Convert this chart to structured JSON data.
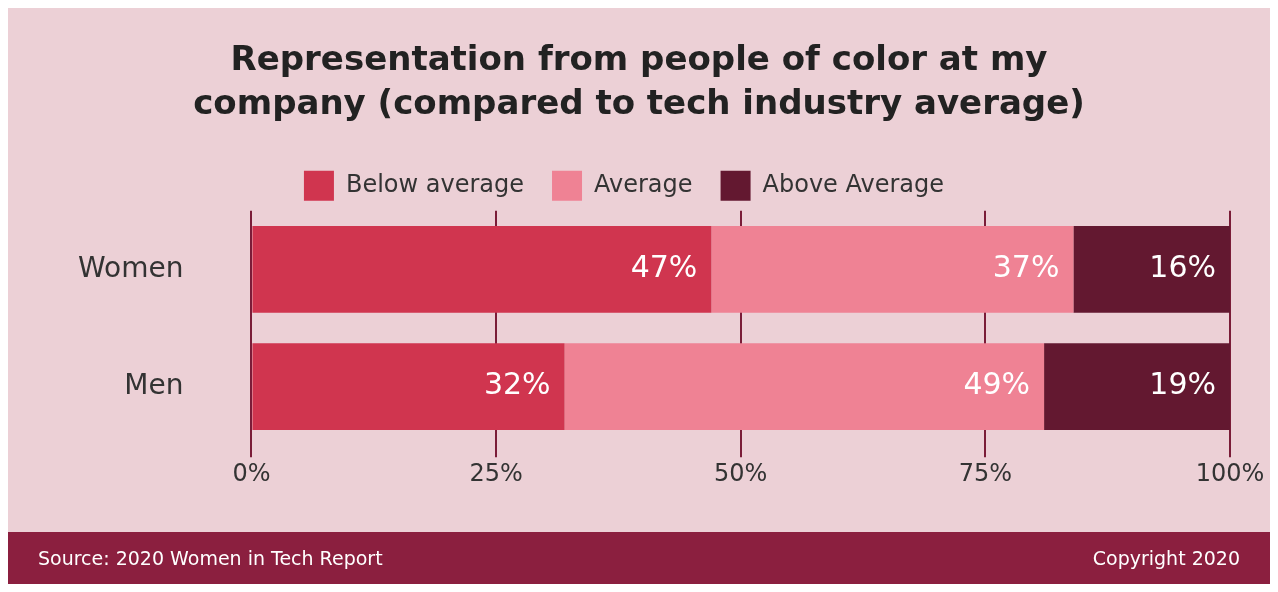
{
  "chart_data": {
    "type": "bar",
    "orientation": "horizontal",
    "stacked": true,
    "title": "Representation from people of color at my company (compared to tech industry average)",
    "categories": [
      "Women",
      "Men"
    ],
    "series": [
      {
        "name": "Below average",
        "color": "#d0354f",
        "values": [
          47,
          32
        ],
        "value_labels": [
          "47%",
          "32%"
        ]
      },
      {
        "name": "Average",
        "color": "#ef8294",
        "values": [
          37,
          49
        ],
        "value_labels": [
          "37%",
          "49%"
        ]
      },
      {
        "name": "Above Average",
        "color": "#631830",
        "values": [
          16,
          19
        ],
        "value_labels": [
          "16%",
          "19%"
        ]
      }
    ],
    "xlim": [
      0,
      100
    ],
    "xticks": [
      {
        "value": 0,
        "label": "0%"
      },
      {
        "value": 25,
        "label": "25%"
      },
      {
        "value": 50,
        "label": "50%"
      },
      {
        "value": 75,
        "label": "75%"
      },
      {
        "value": 100,
        "label": "100%"
      }
    ],
    "grid": "x",
    "legend": "top",
    "annotations": [
      "Source: 2020 Women in Tech Report",
      "Copyright 2020"
    ]
  }
}
